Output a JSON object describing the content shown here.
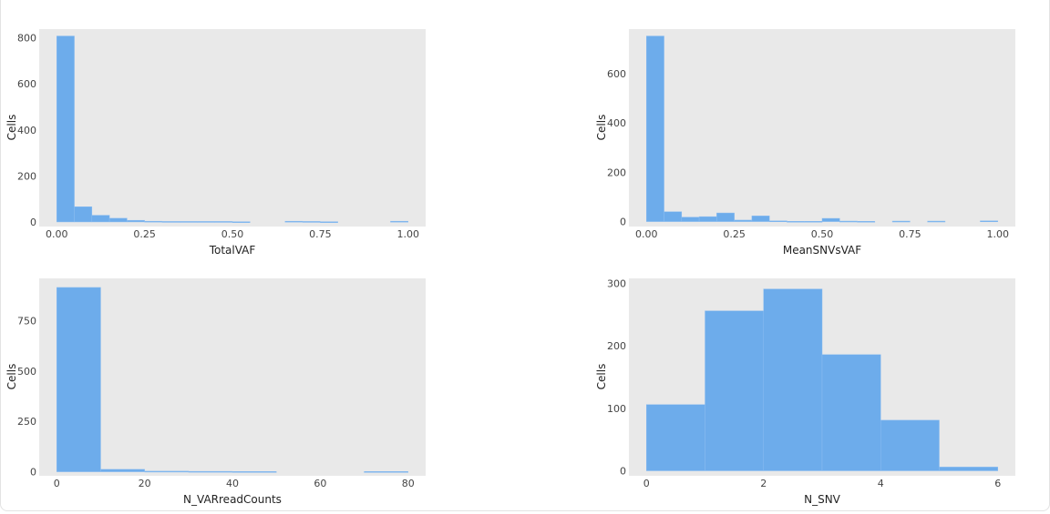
{
  "colors": {
    "bar": "#6daceb",
    "bar_edge": "#8cbdf0",
    "plot_bg": "#e9e9e9",
    "grid": "#ffffff"
  },
  "chart_data": [
    {
      "type": "bar",
      "xlabel": "TotalVAF",
      "ylabel": "Cells",
      "xlim": [
        -0.05,
        1.05
      ],
      "ylim": [
        -20,
        838
      ],
      "xticks": [
        "0.00",
        "0.25",
        "0.50",
        "0.75",
        "1.00"
      ],
      "yticks": [
        "0",
        "200",
        "400",
        "600",
        "800"
      ],
      "bin_edges": [
        0,
        0.05,
        0.1,
        0.15,
        0.2,
        0.25,
        0.3,
        0.35,
        0.4,
        0.45,
        0.5,
        0.55,
        0.6,
        0.65,
        0.7,
        0.75,
        0.8,
        0.85,
        0.9,
        0.95,
        1.0
      ],
      "values": [
        808,
        66,
        29,
        16,
        7,
        3,
        2,
        2,
        2,
        2,
        1,
        0,
        0,
        3,
        2,
        1,
        0,
        0,
        0,
        3
      ]
    },
    {
      "type": "bar",
      "xlabel": "MeanSNVsVAF",
      "ylabel": "Cells",
      "xlim": [
        -0.05,
        1.05
      ],
      "ylim": [
        -20,
        780
      ],
      "xticks": [
        "0.00",
        "0.25",
        "0.50",
        "0.75",
        "1.00"
      ],
      "yticks": [
        "0",
        "200",
        "400",
        "600"
      ],
      "bin_edges": [
        0,
        0.05,
        0.1,
        0.15,
        0.2,
        0.25,
        0.3,
        0.35,
        0.4,
        0.45,
        0.5,
        0.55,
        0.6,
        0.65,
        0.7,
        0.75,
        0.8,
        0.85,
        0.9,
        0.95,
        1.0
      ],
      "values": [
        752,
        40,
        18,
        20,
        35,
        6,
        23,
        3,
        1,
        1,
        13,
        2,
        1,
        0,
        2,
        0,
        2,
        0,
        0,
        3
      ]
    },
    {
      "type": "bar",
      "xlabel": "N_VARreadCounts",
      "ylabel": "Cells",
      "xlim": [
        -4,
        84
      ],
      "ylim": [
        -20,
        960
      ],
      "xticks": [
        "0",
        "20",
        "40",
        "60",
        "80"
      ],
      "yticks": [
        "0",
        "250",
        "500",
        "750"
      ],
      "bin_edges": [
        0,
        10,
        20,
        30,
        40,
        50,
        60,
        70,
        80
      ],
      "values": [
        915,
        12,
        3,
        2,
        1,
        0,
        0,
        1
      ]
    },
    {
      "type": "bar",
      "xlabel": "N_SNV",
      "ylabel": "Cells",
      "xlim": [
        -0.3,
        6.3
      ],
      "ylim": [
        -8,
        308
      ],
      "xticks": [
        "0",
        "2",
        "4",
        "6"
      ],
      "yticks": [
        "0",
        "100",
        "200",
        "300"
      ],
      "bin_edges": [
        0,
        1,
        2,
        3,
        4,
        5,
        6
      ],
      "values": [
        106,
        256,
        291,
        186,
        81,
        6
      ]
    }
  ]
}
